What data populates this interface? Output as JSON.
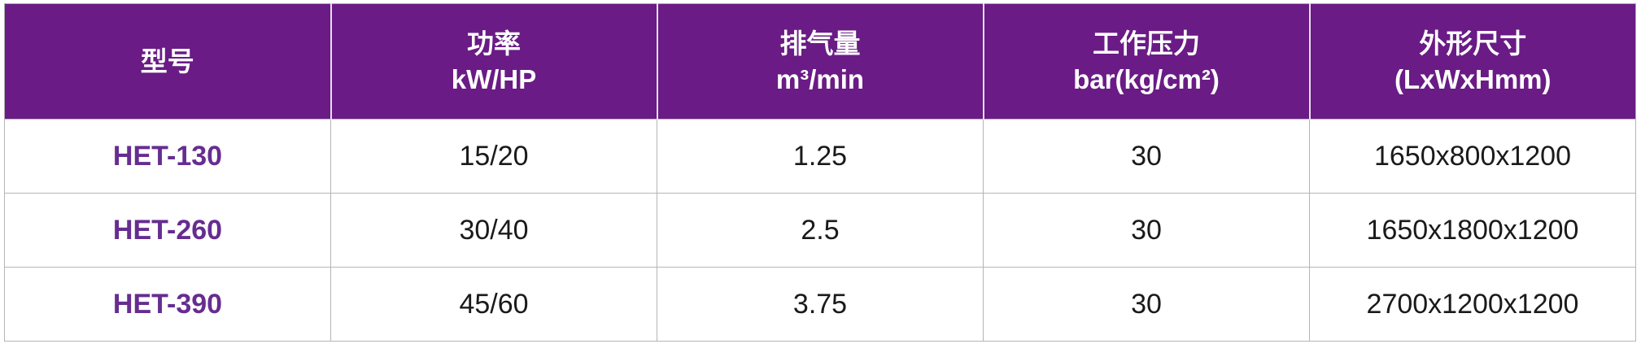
{
  "table": {
    "colors": {
      "header_bg": "#6A1B85",
      "header_text": "#FFFFFF",
      "model_text": "#662D91",
      "body_text": "#1A1A1A",
      "grid_line": "#B5B5B5",
      "header_divider": "#E7E0EB"
    },
    "columns": [
      {
        "line1": "型号",
        "line2": ""
      },
      {
        "line1": "功率",
        "line2": "kW/HP"
      },
      {
        "line1": "排气量",
        "line2": "m³/min"
      },
      {
        "line1": "工作压力",
        "line2": "bar(kg/cm²)"
      },
      {
        "line1": "外形尺寸",
        "line2": "(LxWxHmm)"
      }
    ],
    "rows": [
      {
        "model": "HET-130",
        "power": "15/20",
        "displacement": "1.25",
        "pressure": "30",
        "dimensions": "1650x800x1200"
      },
      {
        "model": "HET-260",
        "power": "30/40",
        "displacement": "2.5",
        "pressure": "30",
        "dimensions": "1650x1800x1200"
      },
      {
        "model": "HET-390",
        "power": "45/60",
        "displacement": "3.75",
        "pressure": "30",
        "dimensions": "2700x1200x1200"
      }
    ]
  }
}
